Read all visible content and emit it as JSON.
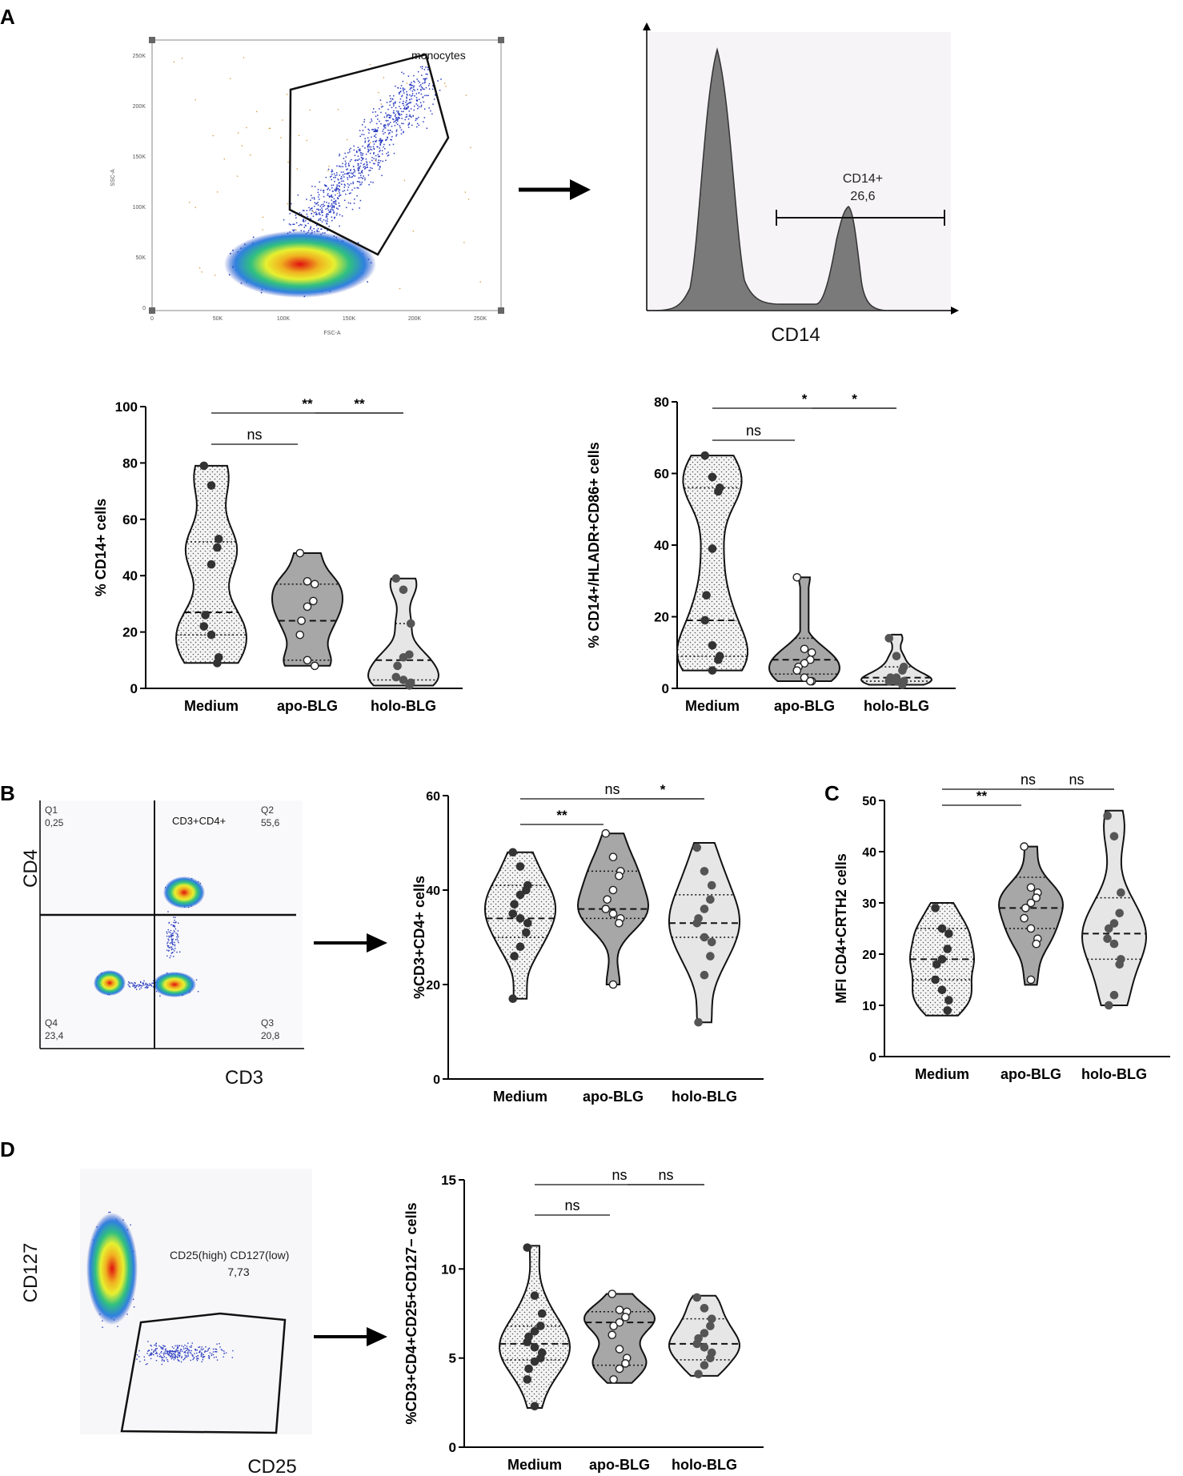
{
  "figure": {
    "panel_labels": [
      "A",
      "B",
      "C",
      "D"
    ]
  },
  "flow_A1": {
    "gate_label": "monocytes",
    "xlabel": "FSC-A",
    "ylabel": "SSC-A",
    "x_ticks": [
      "0",
      "50K",
      "100K",
      "150K",
      "200K",
      "250K"
    ],
    "y_ticks": [
      "0",
      "50K",
      "100K",
      "150K",
      "200K",
      "250K"
    ]
  },
  "flow_A2": {
    "gate_name": "CD14+",
    "gate_value": "26,6",
    "xlabel": "CD14"
  },
  "flow_B": {
    "xlabel": "CD3",
    "ylabel": "CD4",
    "gate_label": "CD3+CD4+",
    "quadrants": [
      {
        "name": "Q1",
        "value": "0,25"
      },
      {
        "name": "Q2",
        "value": "55,6"
      },
      {
        "name": "Q3",
        "value": "20,8"
      },
      {
        "name": "Q4",
        "value": "23,4"
      }
    ]
  },
  "flow_D": {
    "xlabel": "CD25",
    "ylabel": "CD127",
    "gate_label": "CD25(high) CD127(low)",
    "gate_value": "7,73"
  },
  "chart_data": [
    {
      "id": "A_cd14",
      "type": "violin",
      "title": "",
      "ylabel": "% CD14+ cells",
      "ylim": [
        0,
        100
      ],
      "yticks": [
        0,
        20,
        40,
        60,
        80,
        100
      ],
      "categories": [
        "Medium",
        "apo-BLG",
        "holo-BLG"
      ],
      "series": [
        {
          "name": "Medium",
          "min": 9,
          "max": 79,
          "median": 27,
          "q1": 19,
          "q3": 52,
          "points": [
            79,
            72,
            53,
            50,
            44,
            26,
            22,
            19,
            11,
            9
          ]
        },
        {
          "name": "apo-BLG",
          "min": 8,
          "max": 48,
          "median": 24,
          "q1": 10,
          "q3": 37,
          "points": [
            48,
            38,
            37,
            31,
            29,
            24,
            19,
            10,
            8
          ]
        },
        {
          "name": "holo-BLG",
          "min": 1,
          "max": 39,
          "median": 10,
          "q1": 3,
          "q3": 23,
          "points": [
            39,
            35,
            23,
            12,
            11,
            8,
            4,
            3,
            2,
            1
          ]
        }
      ],
      "comparisons": [
        {
          "from": "Medium",
          "to": "holo-BLG",
          "label": "**"
        },
        {
          "from": "Medium",
          "to": "apo-BLG",
          "label": "ns"
        },
        {
          "from": "apo-BLG",
          "to": "holo-BLG",
          "label": "**"
        }
      ]
    },
    {
      "id": "A_cd86",
      "type": "violin",
      "title": "",
      "ylabel": "% CD14+/HLADR+CD86+ cells",
      "ylim": [
        0,
        80
      ],
      "yticks": [
        0,
        20,
        40,
        60,
        80
      ],
      "categories": [
        "Medium",
        "apo-BLG",
        "holo-BLG"
      ],
      "series": [
        {
          "name": "Medium",
          "min": 5,
          "max": 65,
          "median": 19,
          "q1": 9,
          "q3": 56,
          "points": [
            65,
            59,
            56,
            55,
            39,
            26,
            19,
            12,
            9,
            8,
            5
          ]
        },
        {
          "name": "apo-BLG",
          "min": 2,
          "max": 31,
          "median": 8,
          "q1": 4,
          "q3": 14,
          "points": [
            31,
            11,
            10,
            8,
            7,
            6,
            5,
            3,
            2,
            2
          ]
        },
        {
          "name": "holo-BLG",
          "min": 1,
          "max": 15,
          "median": 3,
          "q1": 2,
          "q3": 6,
          "points": [
            14,
            9,
            6,
            5,
            3,
            3,
            2,
            2,
            2,
            1
          ]
        }
      ],
      "comparisons": [
        {
          "from": "Medium",
          "to": "holo-BLG",
          "label": "*"
        },
        {
          "from": "Medium",
          "to": "apo-BLG",
          "label": "ns"
        },
        {
          "from": "apo-BLG",
          "to": "holo-BLG",
          "label": "*"
        }
      ]
    },
    {
      "id": "B_cd3cd4",
      "type": "violin",
      "title": "",
      "ylabel": "%CD3+CD4+ cells",
      "ylim": [
        0,
        60
      ],
      "yticks": [
        0,
        20,
        40,
        60
      ],
      "categories": [
        "Medium",
        "apo-BLG",
        "holo-BLG"
      ],
      "series": [
        {
          "name": "Medium",
          "min": 17,
          "max": 48,
          "median": 34,
          "q1": 30,
          "q3": 41,
          "points": [
            48,
            45,
            41,
            40,
            39,
            37,
            35,
            34,
            33,
            31,
            28,
            26,
            17
          ]
        },
        {
          "name": "apo-BLG",
          "min": 20,
          "max": 52,
          "median": 36,
          "q1": 34,
          "q3": 44,
          "points": [
            52,
            47,
            44,
            43,
            40,
            38,
            36,
            35,
            34,
            33,
            20
          ]
        },
        {
          "name": "holo-BLG",
          "min": 12,
          "max": 50,
          "median": 33,
          "q1": 30,
          "q3": 39,
          "points": [
            49,
            44,
            41,
            38,
            36,
            34,
            33,
            30,
            29,
            26,
            22,
            12
          ]
        }
      ],
      "comparisons": [
        {
          "from": "Medium",
          "to": "holo-BLG",
          "label": "ns"
        },
        {
          "from": "Medium",
          "to": "apo-BLG",
          "label": "**"
        },
        {
          "from": "apo-BLG",
          "to": "holo-BLG",
          "label": "*"
        }
      ]
    },
    {
      "id": "C_crth2",
      "type": "violin",
      "title": "",
      "ylabel": "MFI CD4+CRTH2 cells",
      "ylim": [
        0,
        50
      ],
      "yticks": [
        0,
        10,
        20,
        30,
        40,
        50
      ],
      "categories": [
        "Medium",
        "apo-BLG",
        "holo-BLG"
      ],
      "series": [
        {
          "name": "Medium",
          "min": 8,
          "max": 30,
          "median": 19,
          "q1": 15,
          "q3": 25,
          "points": [
            29,
            25,
            24,
            21,
            19,
            18,
            15,
            13,
            11,
            9
          ]
        },
        {
          "name": "apo-BLG",
          "min": 14,
          "max": 41,
          "median": 29,
          "q1": 25,
          "q3": 35,
          "points": [
            41,
            33,
            32,
            31,
            30,
            29,
            27,
            25,
            23,
            22,
            15
          ]
        },
        {
          "name": "holo-BLG",
          "min": 10,
          "max": 48,
          "median": 24,
          "q1": 19,
          "q3": 31,
          "points": [
            47,
            43,
            32,
            28,
            26,
            25,
            23,
            22,
            19,
            18,
            12,
            10
          ]
        }
      ],
      "comparisons": [
        {
          "from": "Medium",
          "to": "holo-BLG",
          "label": "ns"
        },
        {
          "from": "Medium",
          "to": "apo-BLG",
          "label": "**"
        },
        {
          "from": "apo-BLG",
          "to": "holo-BLG",
          "label": "ns"
        }
      ]
    },
    {
      "id": "D_treg",
      "type": "violin",
      "title": "",
      "ylabel": "%CD3+CD4+CD25+CD127− cells",
      "ylim": [
        0,
        15
      ],
      "yticks": [
        0,
        5,
        10,
        15
      ],
      "categories": [
        "Medium",
        "apo-BLG",
        "holo-BLG"
      ],
      "series": [
        {
          "name": "Medium",
          "min": 2.2,
          "max": 11.3,
          "median": 5.8,
          "q1": 4.9,
          "q3": 6.8,
          "points": [
            11.2,
            8.5,
            7.5,
            6.8,
            6.5,
            6.2,
            5.9,
            5.6,
            5.3,
            5.0,
            4.8,
            4.4,
            3.8,
            2.3
          ]
        },
        {
          "name": "apo-BLG",
          "min": 3.6,
          "max": 8.6,
          "median": 7.0,
          "q1": 4.6,
          "q3": 7.6,
          "points": [
            8.6,
            7.7,
            7.6,
            7.3,
            7.0,
            6.8,
            6.3,
            5.5,
            5.0,
            4.7,
            4.4,
            3.8
          ]
        },
        {
          "name": "holo-BLG",
          "min": 4.0,
          "max": 8.5,
          "median": 5.8,
          "q1": 4.9,
          "q3": 7.2,
          "points": [
            8.4,
            7.8,
            7.2,
            6.8,
            6.4,
            6.1,
            5.8,
            5.6,
            5.3,
            5.0,
            4.6,
            4.1
          ]
        }
      ],
      "comparisons": [
        {
          "from": "Medium",
          "to": "holo-BLG",
          "label": "ns"
        },
        {
          "from": "Medium",
          "to": "apo-BLG",
          "label": "ns"
        },
        {
          "from": "apo-BLG",
          "to": "holo-BLG",
          "label": "ns"
        }
      ]
    }
  ]
}
